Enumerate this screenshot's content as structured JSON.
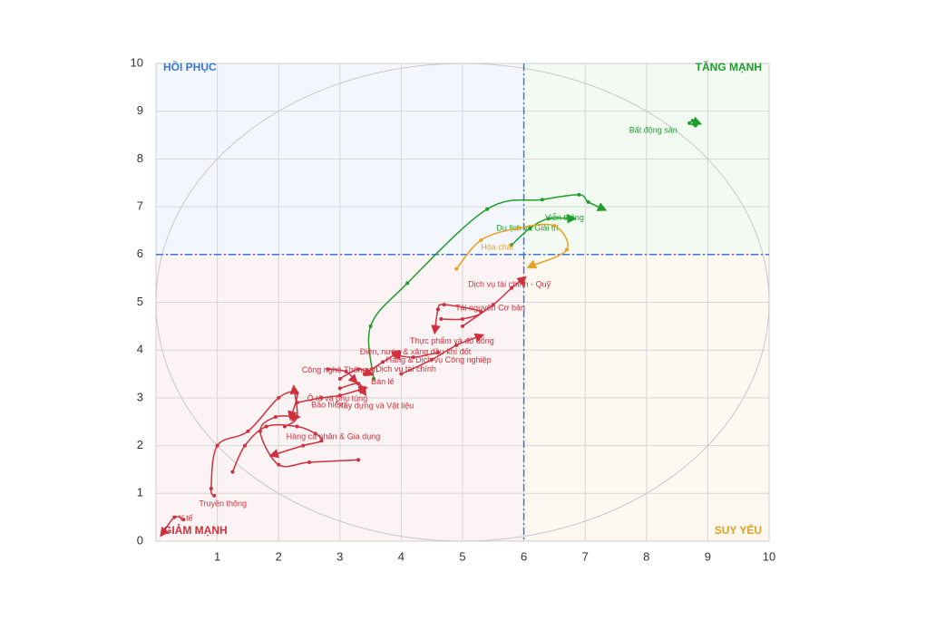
{
  "chart_data": {
    "type": "rotation",
    "quadrants": {
      "top_left": "HỒI PHỤC",
      "top_right": "TĂNG MẠNH",
      "bottom_left": "GIẢM MẠNH",
      "bottom_right": "SUY YẾU"
    },
    "reference_lines": {
      "x": 6,
      "y": 6
    },
    "xlim": [
      0,
      10
    ],
    "ylim": [
      0,
      10
    ],
    "xticks": [
      1,
      2,
      3,
      4,
      5,
      6,
      7,
      8,
      9,
      10
    ],
    "yticks": [
      0,
      1,
      2,
      3,
      4,
      5,
      6,
      7,
      8,
      9,
      10
    ],
    "grid": true,
    "series": [
      {
        "name": "Bất động sản",
        "color": "#1f9d2b",
        "x": [
          8.7,
          8.8,
          8.75,
          8.85
        ],
        "y": [
          8.75,
          8.7,
          8.8,
          8.75
        ]
      },
      {
        "name": "Viễn thông",
        "color": "#1f9d2b",
        "x": [
          3.55,
          3.5,
          4.1,
          5.4,
          6.3,
          6.9,
          7.05,
          7.3
        ],
        "y": [
          3.4,
          4.5,
          5.4,
          6.95,
          7.15,
          7.25,
          7.1,
          6.95
        ]
      },
      {
        "name": "Du lịch và Giải trí",
        "color": "#1f9d2b",
        "x": [
          5.8,
          6.1,
          6.4,
          6.8
        ],
        "y": [
          6.2,
          6.55,
          6.75,
          6.75
        ]
      },
      {
        "name": "Hóa chất",
        "color": "#e8a020",
        "x": [
          4.9,
          5.3,
          5.9,
          6.5,
          6.7,
          6.1
        ],
        "y": [
          5.7,
          6.3,
          6.55,
          6.6,
          6.1,
          5.75
        ]
      },
      {
        "name": "Dịch vụ tài chính - Quỹ",
        "color": "#d0303d",
        "x": [
          5.0,
          5.5,
          5.8,
          6.0
        ],
        "y": [
          4.5,
          4.95,
          5.3,
          5.5
        ]
      },
      {
        "name": "Tài nguyên Cơ bản",
        "color": "#d0303d",
        "x": [
          4.65,
          5.0,
          5.3,
          4.7,
          4.6,
          4.55
        ],
        "y": [
          4.65,
          4.65,
          4.8,
          4.95,
          4.85,
          4.4
        ]
      },
      {
        "name": "Thực phẩm và đồ uống",
        "color": "#d0303d",
        "x": [
          4.0,
          4.5,
          4.9,
          5.3
        ],
        "y": [
          3.5,
          3.8,
          4.1,
          4.3
        ]
      },
      {
        "name": "Điện, nước & xăng dầu khí đốt",
        "color": "#d0303d",
        "x": [
          3.4,
          3.7,
          3.95
        ],
        "y": [
          3.5,
          3.75,
          3.95
        ]
      },
      {
        "name": "Hàng & Dịch vụ Công nghiệp",
        "color": "#d0303d",
        "x": [
          4.6,
          4.2,
          3.9
        ],
        "y": [
          3.95,
          3.85,
          3.9
        ]
      },
      {
        "name": "Công nghệ Thông tin",
        "color": "#d0303d",
        "x": [
          2.8,
          3.1,
          3.25
        ],
        "y": [
          3.6,
          3.55,
          3.35
        ]
      },
      {
        "name": "Dịch vụ tài chính",
        "color": "#d0303d",
        "x": [
          3.0,
          3.3,
          3.5
        ],
        "y": [
          3.4,
          3.6,
          3.5
        ]
      },
      {
        "name": "Bán lẻ",
        "color": "#d0303d",
        "x": [
          3.0,
          3.3,
          3.4
        ],
        "y": [
          3.2,
          3.3,
          3.1
        ]
      },
      {
        "name": "Ô tô và phụ tùng",
        "color": "#d0303d",
        "x": [
          2.3,
          2.7,
          3.0,
          3.4
        ],
        "y": [
          2.9,
          3.0,
          3.05,
          3.2
        ]
      },
      {
        "name": "Bảo hiểm",
        "color": "#d0303d",
        "x": [
          2.1,
          2.3,
          2.25
        ],
        "y": [
          2.4,
          2.6,
          3.2
        ]
      },
      {
        "name": "Xây dựng và Vật liệu",
        "color": "#d0303d",
        "x": [
          3.3,
          2.5,
          2.0,
          1.7,
          1.95,
          2.3
        ],
        "y": [
          1.7,
          1.65,
          1.6,
          2.3,
          2.6,
          2.6
        ]
      },
      {
        "name": "Hàng cá nhân & Gia dụng",
        "color": "#d0303d",
        "x": [
          1.25,
          1.45,
          1.8,
          2.3,
          2.6,
          2.7,
          2.4,
          1.9
        ],
        "y": [
          1.45,
          2.0,
          2.4,
          2.4,
          2.25,
          2.1,
          2.0,
          1.8
        ]
      },
      {
        "name": "Truyền thông",
        "color": "#d0303d",
        "x": [
          0.95,
          0.9,
          1.0,
          1.5,
          2.0,
          2.3,
          2.2
        ],
        "y": [
          0.95,
          1.1,
          2.0,
          2.3,
          3.0,
          3.1,
          2.6
        ]
      },
      {
        "name": "Y tế",
        "color": "#d0303d",
        "x": [
          0.45,
          0.3,
          0.1
        ],
        "y": [
          0.45,
          0.5,
          0.15
        ]
      }
    ]
  }
}
